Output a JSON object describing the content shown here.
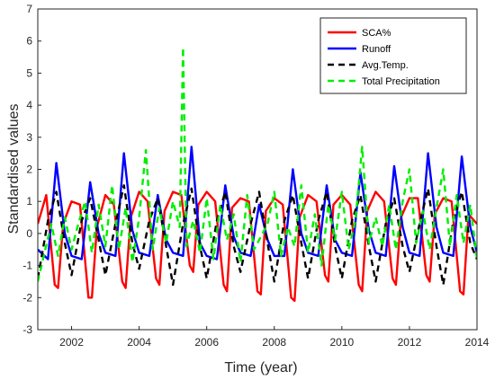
{
  "chart_data": {
    "type": "line",
    "title": "",
    "xlabel": "Time (year)",
    "ylabel": "Standardised values",
    "xlim": [
      2001,
      2014
    ],
    "ylim": [
      -3,
      7
    ],
    "xticks": [
      2002,
      2004,
      2006,
      2008,
      2010,
      2012,
      2014
    ],
    "yticks": [
      -3,
      -2,
      -1,
      0,
      1,
      2,
      3,
      4,
      5,
      6,
      7
    ],
    "grid": true,
    "legend_position": "top-right",
    "series": [
      {
        "name": "SCA%",
        "color": "#ff0000",
        "style": "solid",
        "x": [
          2001.0,
          2001.25,
          2001.5,
          2001.6,
          2001.75,
          2002.0,
          2002.25,
          2002.5,
          2002.6,
          2002.75,
          2003.0,
          2003.25,
          2003.5,
          2003.6,
          2003.75,
          2004.0,
          2004.25,
          2004.5,
          2004.6,
          2004.75,
          2005.0,
          2005.25,
          2005.5,
          2005.6,
          2005.75,
          2006.0,
          2006.25,
          2006.5,
          2006.6,
          2006.75,
          2007.0,
          2007.25,
          2007.5,
          2007.6,
          2007.75,
          2008.0,
          2008.25,
          2008.5,
          2008.6,
          2008.75,
          2009.0,
          2009.25,
          2009.5,
          2009.6,
          2009.75,
          2010.0,
          2010.25,
          2010.5,
          2010.6,
          2010.75,
          2011.0,
          2011.25,
          2011.5,
          2011.6,
          2011.75,
          2012.0,
          2012.25,
          2012.5,
          2012.6,
          2012.75,
          2013.0,
          2013.25,
          2013.5,
          2013.6,
          2013.75,
          2014.0
        ],
        "values": [
          0.3,
          1.2,
          -1.6,
          -1.7,
          0.3,
          1.0,
          0.9,
          -2.0,
          -2.0,
          0.2,
          1.2,
          0.9,
          -1.5,
          -1.7,
          0.5,
          1.3,
          1.0,
          -1.4,
          -1.6,
          0.7,
          1.3,
          1.2,
          -1.0,
          -1.2,
          0.9,
          1.3,
          1.0,
          -1.6,
          -1.8,
          0.8,
          1.1,
          1.0,
          -1.8,
          -1.9,
          0.7,
          1.1,
          0.9,
          -2.0,
          -2.1,
          0.5,
          1.2,
          1.0,
          -1.3,
          -1.5,
          0.9,
          1.2,
          0.9,
          -1.6,
          -1.8,
          0.7,
          1.3,
          1.0,
          -1.4,
          -1.6,
          0.5,
          1.1,
          1.1,
          -1.3,
          -1.5,
          0.6,
          1.1,
          1.0,
          -1.8,
          -1.9,
          0.6,
          0.3
        ]
      },
      {
        "name": "Runoff",
        "color": "#0000ff",
        "style": "solid",
        "x": [
          2001.0,
          2001.3,
          2001.55,
          2001.8,
          2002.0,
          2002.3,
          2002.55,
          2002.8,
          2003.0,
          2003.3,
          2003.55,
          2003.8,
          2004.0,
          2004.3,
          2004.55,
          2004.8,
          2005.0,
          2005.3,
          2005.55,
          2005.8,
          2006.0,
          2006.3,
          2006.55,
          2006.8,
          2007.0,
          2007.3,
          2007.55,
          2007.8,
          2008.0,
          2008.3,
          2008.55,
          2008.8,
          2009.0,
          2009.3,
          2009.55,
          2009.8,
          2010.0,
          2010.3,
          2010.55,
          2010.8,
          2011.0,
          2011.3,
          2011.55,
          2011.8,
          2012.0,
          2012.3,
          2012.55,
          2012.8,
          2013.0,
          2013.3,
          2013.55,
          2013.8,
          2014.0
        ],
        "values": [
          -0.5,
          -0.8,
          2.2,
          0.0,
          -0.7,
          -0.8,
          1.6,
          0.0,
          -0.6,
          -0.7,
          2.5,
          0.1,
          -0.6,
          -0.7,
          1.2,
          -0.2,
          -0.6,
          -0.7,
          2.7,
          -0.3,
          -0.7,
          -0.8,
          1.5,
          -0.1,
          -0.6,
          -0.7,
          0.9,
          -0.2,
          -0.7,
          -0.7,
          2.0,
          0.0,
          -0.6,
          -0.7,
          1.5,
          -0.2,
          -0.6,
          -0.7,
          1.9,
          0.1,
          -0.6,
          -0.7,
          2.1,
          0.2,
          -0.6,
          -0.7,
          2.5,
          0.2,
          -0.6,
          -0.7,
          2.4,
          0.2,
          -0.6
        ]
      },
      {
        "name": "Avg.Temp.",
        "color": "#000000",
        "style": "dashed",
        "x": [
          2001.0,
          2001.3,
          2001.55,
          2001.8,
          2002.0,
          2002.3,
          2002.55,
          2002.8,
          2003.0,
          2003.3,
          2003.55,
          2003.8,
          2004.0,
          2004.3,
          2004.55,
          2004.8,
          2005.0,
          2005.3,
          2005.55,
          2005.8,
          2006.0,
          2006.3,
          2006.55,
          2006.8,
          2007.0,
          2007.3,
          2007.55,
          2007.8,
          2008.0,
          2008.3,
          2008.55,
          2008.8,
          2009.0,
          2009.3,
          2009.55,
          2009.8,
          2010.0,
          2010.3,
          2010.55,
          2010.8,
          2011.0,
          2011.3,
          2011.55,
          2011.8,
          2012.0,
          2012.3,
          2012.55,
          2012.8,
          2013.0,
          2013.3,
          2013.55,
          2013.8,
          2014.0
        ],
        "values": [
          -1.4,
          0.4,
          1.3,
          -0.3,
          -1.3,
          0.4,
          1.1,
          -0.2,
          -1.3,
          0.3,
          1.5,
          -0.3,
          -1.1,
          0.4,
          1.1,
          -0.4,
          -1.6,
          0.3,
          1.4,
          -0.4,
          -1.4,
          0.4,
          1.3,
          -0.4,
          -1.2,
          0.3,
          1.3,
          -0.3,
          -1.5,
          0.4,
          1.2,
          -0.3,
          -1.4,
          0.4,
          1.3,
          -0.4,
          -1.4,
          0.4,
          1.2,
          -0.4,
          -1.5,
          0.3,
          1.1,
          -0.4,
          -1.2,
          0.3,
          1.4,
          -0.4,
          -1.6,
          0.4,
          1.3,
          -0.3,
          -0.8
        ]
      },
      {
        "name": "Total Precipitation",
        "color": "#00ee00",
        "style": "dashed",
        "x": [
          2001.0,
          2001.2,
          2001.4,
          2001.6,
          2001.8,
          2002.0,
          2002.2,
          2002.4,
          2002.6,
          2002.8,
          2003.0,
          2003.2,
          2003.4,
          2003.6,
          2003.8,
          2004.0,
          2004.2,
          2004.4,
          2004.6,
          2004.8,
          2005.0,
          2005.2,
          2005.3,
          2005.4,
          2005.6,
          2005.8,
          2006.0,
          2006.2,
          2006.4,
          2006.6,
          2006.8,
          2007.0,
          2007.2,
          2007.4,
          2007.6,
          2007.8,
          2008.0,
          2008.2,
          2008.4,
          2008.6,
          2008.8,
          2009.0,
          2009.2,
          2009.4,
          2009.6,
          2009.8,
          2010.0,
          2010.2,
          2010.4,
          2010.6,
          2010.8,
          2011.0,
          2011.2,
          2011.4,
          2011.6,
          2011.8,
          2012.0,
          2012.2,
          2012.4,
          2012.6,
          2012.8,
          2013.0,
          2013.2,
          2013.4,
          2013.6,
          2013.8,
          2014.0
        ],
        "values": [
          -1.5,
          -0.6,
          0.3,
          -0.7,
          0.5,
          -0.5,
          0.3,
          1.0,
          -0.6,
          0.9,
          -0.4,
          1.5,
          -0.5,
          0.8,
          -0.9,
          0.5,
          2.6,
          -0.5,
          0.8,
          -0.3,
          1.0,
          0.2,
          5.8,
          -0.4,
          0.4,
          -0.6,
          1.1,
          -0.8,
          0.9,
          -0.2,
          0.6,
          -0.9,
          1.2,
          -0.5,
          -0.1,
          0.3,
          1.3,
          -0.7,
          0.2,
          -0.4,
          1.5,
          -0.6,
          0.6,
          -1.0,
          0.9,
          -0.2,
          1.3,
          -0.5,
          0.4,
          2.7,
          -0.3,
          0.5,
          -0.4,
          0.9,
          -0.5,
          1.0,
          2.0,
          -0.3,
          0.7,
          -0.5,
          0.8,
          2.0,
          -0.4,
          1.2,
          -0.3,
          0.9,
          -0.8
        ]
      }
    ]
  }
}
